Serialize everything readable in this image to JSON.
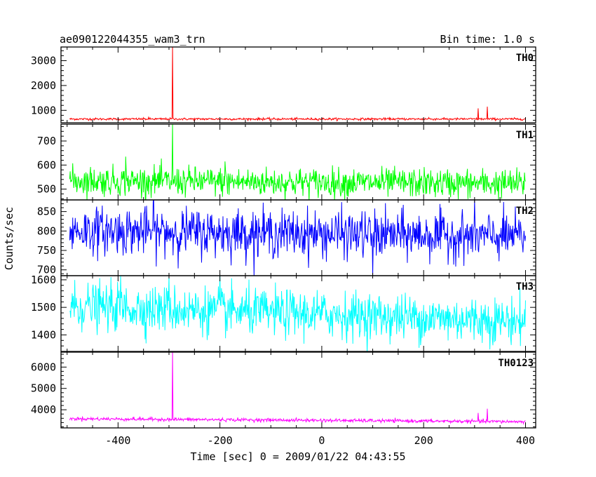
{
  "chart_data": {
    "type": "line",
    "title_left": "ae090122044355_wam3_trn",
    "title_right": "Bin time: 1.0 s",
    "xlabel": "Time [sec] 0 = 2009/01/22 04:43:55",
    "ylabel": "Counts/sec",
    "xlim": [
      -512,
      420
    ],
    "xticks": [
      -400,
      -200,
      0,
      200,
      400
    ],
    "x_range": [
      -495,
      400
    ],
    "panels": [
      {
        "name": "TH0",
        "color": "#ff0000",
        "ylim": [
          500,
          3550
        ],
        "yticks": [
          1000,
          2000,
          3000
        ],
        "baseline": 650,
        "noise": 22,
        "spikes": [
          [
            -293,
            3550
          ],
          [
            -340,
            720
          ],
          [
            -115,
            700
          ],
          [
            210,
            710
          ],
          [
            307,
            1080
          ],
          [
            325,
            1150
          ]
        ]
      },
      {
        "name": "TH1",
        "color": "#00ff00",
        "ylim": [
          455,
          770
        ],
        "yticks": [
          500,
          600,
          700
        ],
        "baseline_start": 535,
        "baseline_end": 522,
        "noise": 30,
        "spikes": [
          [
            -293,
            770
          ],
          [
            -385,
            635
          ],
          [
            -190,
            615
          ]
        ]
      },
      {
        "name": "TH2",
        "color": "#0000ff",
        "ylim": [
          685,
          880
        ],
        "yticks": [
          700,
          750,
          800,
          850
        ],
        "baseline_start": 802,
        "baseline_end": 785,
        "noise": 30,
        "spikes": [
          [
            100,
            685
          ],
          [
            -330,
            880
          ],
          [
            300,
            880
          ]
        ]
      },
      {
        "name": "TH3",
        "color": "#00ffff",
        "ylim": [
          1340,
          1615
        ],
        "yticks": [
          1400,
          1500,
          1600
        ],
        "baseline_start": 1505,
        "baseline_end": 1450,
        "noise": 42,
        "spikes": [
          [
            -395,
            1615
          ],
          [
            -300,
            1615
          ],
          [
            -200,
            1615
          ]
        ]
      },
      {
        "name": "TH0123",
        "color": "#ff00ff",
        "ylim": [
          3150,
          6700
        ],
        "yticks": [
          4000,
          5000,
          6000
        ],
        "baseline_start": 3580,
        "baseline_end": 3440,
        "noise": 40,
        "spikes": [
          [
            -293,
            6700
          ],
          [
            307,
            3850
          ],
          [
            325,
            4050
          ]
        ]
      }
    ]
  }
}
